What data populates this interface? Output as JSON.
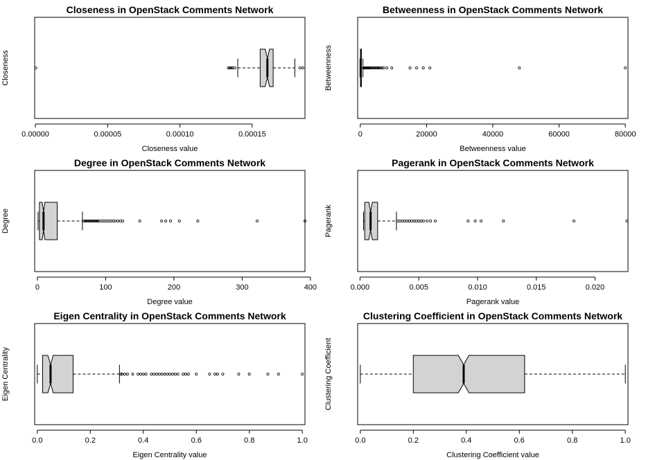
{
  "chart_data": [
    {
      "type": "boxplot",
      "title": "Closeness in OpenStack Comments Network",
      "xlabel": "Closeness value",
      "ylabel": "Closeness",
      "xlim": [
        -5e-07,
        0.0001865
      ],
      "ticks": [
        0,
        5e-05,
        0.0001,
        0.00015
      ],
      "tick_labels": [
        "0.00000",
        "0.00005",
        "0.00010",
        "0.00015"
      ],
      "box": {
        "whisker_low": 0.00014,
        "q1": 0.0001555,
        "median": 0.0001605,
        "q3": 0.0001645,
        "whisker_high": 0.0001795,
        "notch_low": 0.000159,
        "notch_high": 0.000162
      },
      "outliers": [
        3e-07,
        0.0001335,
        0.0001345,
        0.0001355,
        0.0001365,
        0.000138,
        0.000183,
        0.000185
      ]
    },
    {
      "type": "boxplot",
      "title": "Betweenness in OpenStack Comments Network",
      "xlabel": "Betweenness value",
      "ylabel": "Betweenness",
      "xlim": [
        -800,
        80800
      ],
      "ticks": [
        0,
        20000,
        40000,
        60000,
        80000
      ],
      "tick_labels": [
        "0",
        "20000",
        "40000",
        "60000",
        "80000"
      ],
      "box": {
        "whisker_low": 0,
        "q1": 30,
        "median": 100,
        "q3": 350,
        "whisker_high": 800,
        "notch_low": 80,
        "notch_high": 120
      },
      "outliers": [
        1000,
        1200,
        1400,
        1600,
        1800,
        2000,
        2200,
        2400,
        2600,
        2800,
        3000,
        3300,
        3600,
        4000,
        4400,
        4800,
        5200,
        5600,
        6000,
        6500,
        7000,
        8000,
        9500,
        15000,
        17000,
        19000,
        21000,
        48000,
        80000
      ]
    },
    {
      "type": "boxplot",
      "title": "Degree in OpenStack Comments Network",
      "xlabel": "Degree value",
      "ylabel": "Degree",
      "xlim": [
        -4,
        392
      ],
      "ticks": [
        0,
        100,
        200,
        300,
        400
      ],
      "tick_labels": [
        "0",
        "100",
        "200",
        "300",
        "400"
      ],
      "box": {
        "whisker_low": 1,
        "q1": 3,
        "median": 9,
        "q3": 29,
        "whisker_high": 66,
        "notch_low": 7,
        "notch_high": 11
      },
      "outliers": [
        68,
        70,
        72,
        74,
        76,
        78,
        80,
        82,
        84,
        86,
        88,
        90,
        93,
        96,
        99,
        102,
        105,
        108,
        111,
        114,
        118,
        122,
        125,
        150,
        182,
        188,
        195,
        208,
        235,
        322,
        392
      ]
    },
    {
      "type": "boxplot",
      "title": "Pagerank in OpenStack Comments Network",
      "xlabel": "Pagerank value",
      "ylabel": "Pagerank",
      "xlim": [
        -0.0002,
        0.0228
      ],
      "ticks": [
        0,
        0.005,
        0.01,
        0.015,
        0.02
      ],
      "tick_labels": [
        "0.000",
        "0.005",
        "0.010",
        "0.015",
        "0.020"
      ],
      "box": {
        "whisker_low": 0.0003,
        "q1": 0.0004,
        "median": 0.0009,
        "q3": 0.0015,
        "whisker_high": 0.0031,
        "notch_low": 0.00075,
        "notch_high": 0.00105
      },
      "outliers": [
        0.0032,
        0.0034,
        0.0036,
        0.0038,
        0.004,
        0.0042,
        0.0044,
        0.0046,
        0.0048,
        0.005,
        0.0052,
        0.0054,
        0.0057,
        0.006,
        0.0064,
        0.0092,
        0.0098,
        0.0103,
        0.0122,
        0.0182,
        0.0227
      ]
    },
    {
      "type": "boxplot",
      "title": "Eigen Centrality in OpenStack Comments Network",
      "xlabel": "Eigen Centrality value",
      "ylabel": "Eigen Centrality",
      "xlim": [
        -0.01,
        1.01
      ],
      "ticks": [
        0,
        0.2,
        0.4,
        0.6,
        0.8,
        1.0
      ],
      "tick_labels": [
        "0.0",
        "0.2",
        "0.4",
        "0.6",
        "0.8",
        "1.0"
      ],
      "box": {
        "whisker_low": 0.0,
        "q1": 0.02,
        "median": 0.05,
        "q3": 0.135,
        "whisker_high": 0.31,
        "notch_low": 0.04,
        "notch_high": 0.06
      },
      "outliers": [
        0.315,
        0.32,
        0.33,
        0.34,
        0.36,
        0.38,
        0.39,
        0.4,
        0.41,
        0.43,
        0.44,
        0.45,
        0.46,
        0.47,
        0.48,
        0.49,
        0.5,
        0.51,
        0.52,
        0.53,
        0.55,
        0.56,
        0.57,
        0.6,
        0.65,
        0.67,
        0.68,
        0.7,
        0.76,
        0.8,
        0.87,
        0.91,
        1.0
      ]
    },
    {
      "type": "boxplot",
      "title": "Clustering Coefficient in OpenStack Comments Network",
      "xlabel": "Clustering Coefficient value",
      "ylabel": "Clustering Coefficient",
      "xlim": [
        -0.01,
        1.01
      ],
      "ticks": [
        0,
        0.2,
        0.4,
        0.6,
        0.8,
        1.0
      ],
      "tick_labels": [
        "0.0",
        "0.2",
        "0.4",
        "0.6",
        "0.8",
        "1.0"
      ],
      "box": {
        "whisker_low": 0.0,
        "q1": 0.2,
        "median": 0.39,
        "q3": 0.62,
        "whisker_high": 1.0,
        "notch_low": 0.37,
        "notch_high": 0.41
      },
      "outliers": []
    }
  ],
  "colors": {
    "box_fill": "#d3d3d3",
    "stroke": "#000000"
  }
}
